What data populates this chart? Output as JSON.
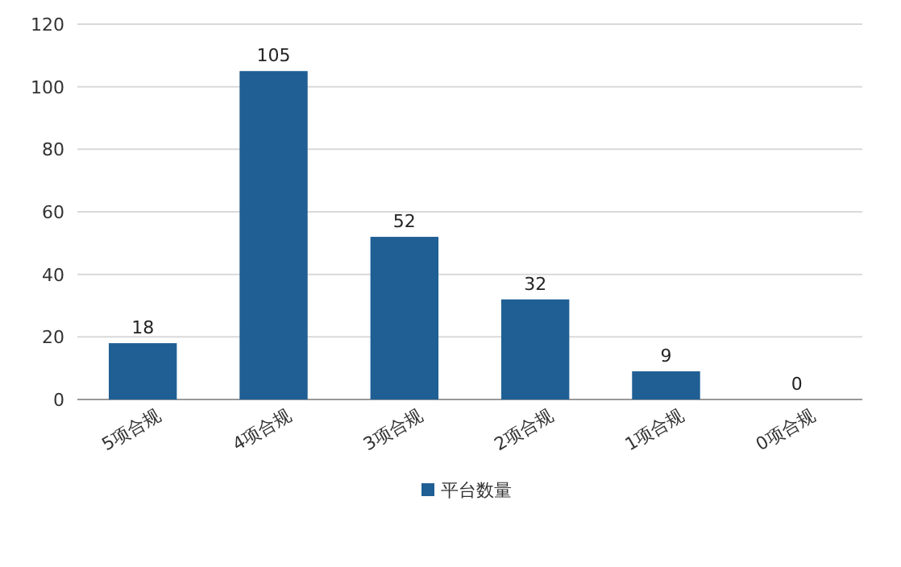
{
  "chart_data": {
    "type": "bar",
    "categories": [
      "5项合规",
      "4项合规",
      "3项合规",
      "2项合规",
      "1项合规",
      "0项合规"
    ],
    "series": [
      {
        "name": "平台数量",
        "color": "#1f5f94",
        "values": [
          18,
          105,
          52,
          32,
          9,
          0
        ]
      }
    ],
    "ylim": [
      0,
      120
    ],
    "yticks": [
      0,
      20,
      40,
      60,
      80,
      100,
      120
    ],
    "grid": "y",
    "legend": "bottom",
    "data_labels": true
  }
}
